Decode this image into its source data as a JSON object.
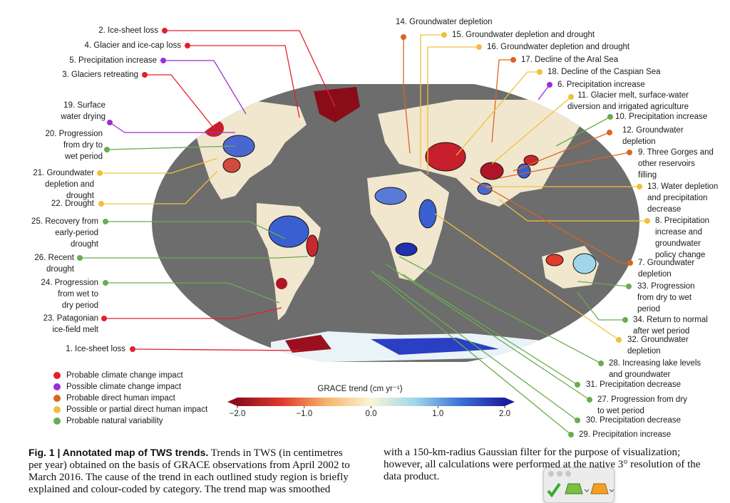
{
  "figure": {
    "annotations": [
      {
        "lines": [
          "2. Ice-sheet loss"
        ],
        "color": "#e3202b"
      },
      {
        "lines": [
          "4. Glacier and ice-cap loss"
        ],
        "color": "#e3202b"
      },
      {
        "lines": [
          "5. Precipitation increase"
        ],
        "color": "#9a2fd6"
      },
      {
        "lines": [
          "3. Glaciers retreating"
        ],
        "color": "#e3202b"
      },
      {
        "lines": [
          "19. Surface",
          "water drying"
        ],
        "color": "#9a2fd6"
      },
      {
        "lines": [
          "20. Progression",
          "from dry to",
          "wet period"
        ],
        "color": "#6aac4f"
      },
      {
        "lines": [
          "21. Groundwater",
          "depletion and",
          "drought"
        ],
        "color": "#f2bf3c"
      },
      {
        "lines": [
          "22. Drought"
        ],
        "color": "#f2bf3c"
      },
      {
        "lines": [
          "25. Recovery from",
          "early-period",
          "drought"
        ],
        "color": "#6aac4f"
      },
      {
        "lines": [
          "26. Recent",
          "drought"
        ],
        "color": "#6aac4f"
      },
      {
        "lines": [
          "24. Progression",
          "from wet to",
          "dry period"
        ],
        "color": "#6aac4f"
      },
      {
        "lines": [
          "23. Patagonian",
          "ice-field melt"
        ],
        "color": "#e3202b"
      },
      {
        "lines": [
          "1. Ice-sheet loss"
        ],
        "color": "#e3202b"
      },
      {
        "lines": [
          "14. Groundwater depletion"
        ],
        "color": "#d9661f"
      },
      {
        "lines": [
          "15. Groundwater depletion and drought"
        ],
        "color": "#f2bf3c"
      },
      {
        "lines": [
          "16. Groundwater depletion and drought"
        ],
        "color": "#f2bf3c"
      },
      {
        "lines": [
          "17. Decline of the Aral Sea"
        ],
        "color": "#d9661f"
      },
      {
        "lines": [
          "18. Decline of the Caspian Sea"
        ],
        "color": "#f2bf3c"
      },
      {
        "lines": [
          "6. Precipitation increase"
        ],
        "color": "#9a2fd6"
      },
      {
        "lines": [
          "11. Glacier melt, surface-water",
          "diversion and irrigated agriculture"
        ],
        "color": "#f2bf3c"
      },
      {
        "lines": [
          "10. Precipitation increase"
        ],
        "color": "#6aac4f"
      },
      {
        "lines": [
          "12. Groundwater",
          "depletion"
        ],
        "color": "#d9661f"
      },
      {
        "lines": [
          "9. Three Gorges and",
          "other reservoirs",
          "filling"
        ],
        "color": "#d9661f"
      },
      {
        "lines": [
          "13. Water depletion",
          "and precipitation",
          "decrease"
        ],
        "color": "#f2bf3c"
      },
      {
        "lines": [
          "8. Precipitation",
          "increase and",
          "groundwater",
          "policy change"
        ],
        "color": "#f2bf3c"
      },
      {
        "lines": [
          "7. Groundwater",
          "depletion"
        ],
        "color": "#d9661f"
      },
      {
        "lines": [
          "33. Progression",
          "from dry to wet",
          "period"
        ],
        "color": "#6aac4f"
      },
      {
        "lines": [
          "34. Return to normal",
          "after wet period"
        ],
        "color": "#6aac4f"
      },
      {
        "lines": [
          "32. Groundwater",
          "depletion"
        ],
        "color": "#f2bf3c"
      },
      {
        "lines": [
          "28. Increasing lake levels",
          "and groundwater"
        ],
        "color": "#6aac4f"
      },
      {
        "lines": [
          "31. Precipitation decrease"
        ],
        "color": "#6aac4f"
      },
      {
        "lines": [
          "27. Progression from dry",
          "to wet period"
        ],
        "color": "#6aac4f"
      },
      {
        "lines": [
          "30. Precipitation decrease"
        ],
        "color": "#6aac4f"
      },
      {
        "lines": [
          "29. Precipitation increase"
        ],
        "color": "#6aac4f"
      }
    ],
    "legend": [
      {
        "label": "Probable climate change impact",
        "color": "#e3202b"
      },
      {
        "label": "Possible climate change impact",
        "color": "#9a2fd6"
      },
      {
        "label": "Probable direct human impact",
        "color": "#d9661f"
      },
      {
        "label": "Possible or partial direct human impact",
        "color": "#f2bf3c"
      },
      {
        "label": "Probable natural variability",
        "color": "#6aac4f"
      }
    ],
    "colorbar": {
      "title": "GRACE trend (cm yr⁻¹)",
      "range": [
        -2,
        2
      ],
      "ticks": [
        {
          "value": -2,
          "label": "−2.0"
        },
        {
          "value": -1,
          "label": "−1.0"
        },
        {
          "value": 0,
          "label": "0.0"
        },
        {
          "value": 1,
          "label": "1.0"
        },
        {
          "value": 2,
          "label": "2.0"
        }
      ],
      "colors": [
        "#8c0d1e",
        "#e03b2c",
        "#f5b46a",
        "#fbf4d8",
        "#9fd6ea",
        "#3a72d6",
        "#1e1ea0"
      ]
    }
  },
  "caption": {
    "title": "Fig. 1 | Annotated map of TWS trends.",
    "lines": [
      " Trends in TWS (in centimetres",
      "per year) obtained on the basis of GRACE observations from April 2002 to",
      "March 2016. The cause of the trend in each outlined study region is briefly",
      "explained and colour-coded by category. The trend map was smoothed",
      "with a 150-km-radius Gaussian filter for the purpose of visualization;",
      "however, all calculations were performed at the native 3° resolution of the",
      "data product."
    ]
  }
}
